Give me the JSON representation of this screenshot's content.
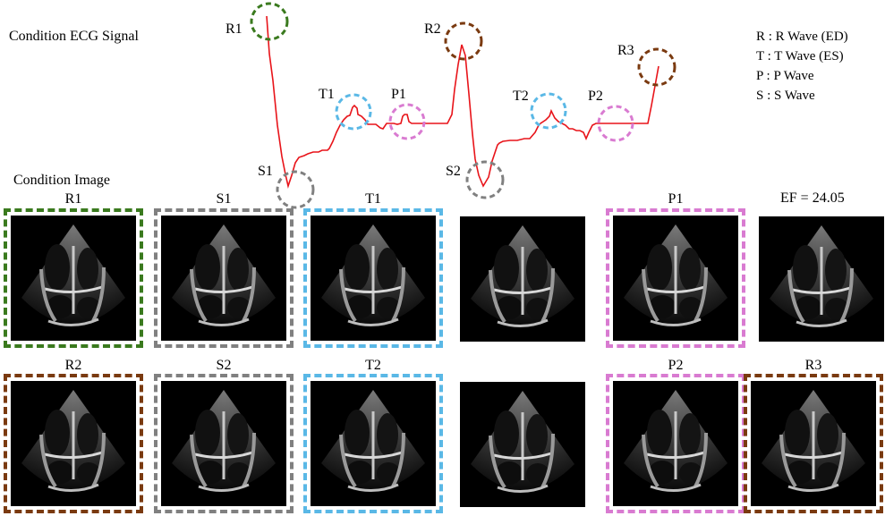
{
  "titles": {
    "ecg": "Condition ECG Signal",
    "image": "Condition Image",
    "ef": "EF = 24.05"
  },
  "legend": [
    "R : R Wave (ED)",
    "T : T Wave (ES)",
    "P : P Wave",
    "S : S Wave"
  ],
  "ecg_markers": [
    {
      "label": "R1",
      "color": "#3a7a1e"
    },
    {
      "label": "S1",
      "color": "#808080"
    },
    {
      "label": "T1",
      "color": "#5ab8e6"
    },
    {
      "label": "P1",
      "color": "#d97bd1"
    },
    {
      "label": "R2",
      "color": "#7a3a10"
    },
    {
      "label": "S2",
      "color": "#808080"
    },
    {
      "label": "T2",
      "color": "#5ab8e6"
    },
    {
      "label": "P2",
      "color": "#d97bd1"
    },
    {
      "label": "R3",
      "color": "#7a3a10"
    }
  ],
  "signal_color": "#e8141a",
  "rows": [
    [
      {
        "label": "R1",
        "color": "#3a7a1e"
      },
      {
        "label": "S1",
        "color": "#808080"
      },
      {
        "label": "T1",
        "color": "#5ab8e6"
      },
      {
        "label": "",
        "color": ""
      },
      {
        "label": "P1",
        "color": "#d97bd1"
      },
      {
        "label": "",
        "color": ""
      }
    ],
    [
      {
        "label": "R2",
        "color": "#7a3a10"
      },
      {
        "label": "S2",
        "color": "#808080"
      },
      {
        "label": "T2",
        "color": "#5ab8e6"
      },
      {
        "label": "",
        "color": ""
      },
      {
        "label": "P2",
        "color": "#d97bd1"
      },
      {
        "label": "R3",
        "color": "#7a3a10"
      }
    ]
  ]
}
